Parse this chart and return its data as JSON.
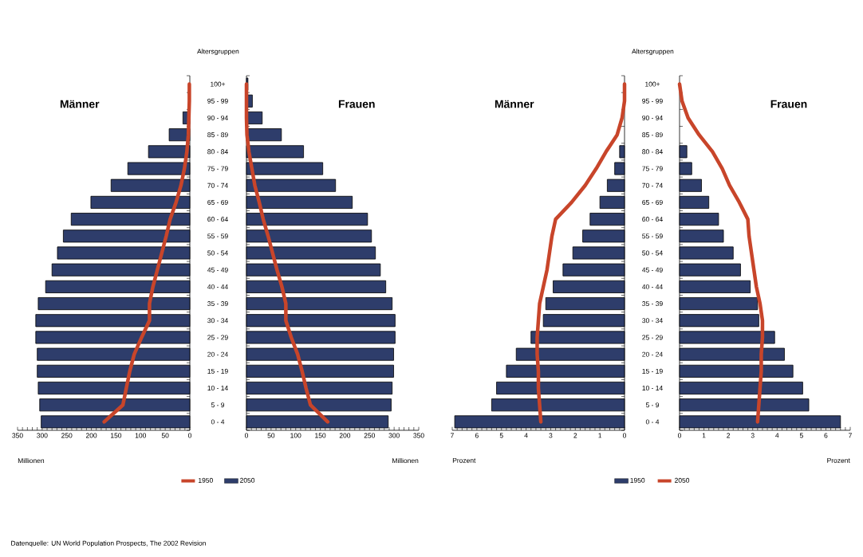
{
  "chart_data": [
    {
      "type": "bar",
      "orientation": "horizontal",
      "title": "Männer",
      "ylabel": "Altersgruppen",
      "xlabel": "Millionen",
      "legend": "bottom",
      "categories": [
        "100+",
        "95 - 99",
        "90 - 94",
        "85 - 89",
        "80 - 84",
        "75 - 79",
        "70 - 74",
        "65 - 69",
        "60 - 64",
        "55 - 59",
        "50 - 54",
        "45 - 49",
        "40 - 44",
        "35 - 39",
        "30 - 34",
        "25 - 29",
        "20 - 24",
        "15 - 19",
        "10 - 14",
        "5 - 9",
        "0 - 4"
      ],
      "xlim": [
        350,
        0
      ],
      "xticks": [
        350,
        300,
        250,
        200,
        150,
        100,
        50,
        0
      ],
      "series": [
        {
          "name": "1950",
          "type": "line",
          "color": "#c8452a",
          "values": [
            1,
            1,
            2,
            3,
            6,
            11,
            18,
            28,
            40,
            48,
            57,
            66,
            75,
            82,
            82,
            98,
            113,
            122,
            129,
            136,
            174
          ]
        },
        {
          "name": "2050",
          "type": "bar",
          "color": "#2e3d6b",
          "values": [
            null,
            null,
            14,
            42,
            84,
            126,
            160,
            201,
            241,
            257,
            269,
            280,
            293,
            308,
            313,
            313,
            310,
            310,
            308,
            305,
            302
          ]
        }
      ],
      "annotations": [
        "Datenquelle: UN World Population Prospects, The 2002 Revision"
      ]
    },
    {
      "type": "bar",
      "orientation": "horizontal",
      "title": "Frauen",
      "xlabel": "Millionen",
      "tick_labels": "x",
      "categories": [
        null,
        null,
        null,
        null,
        null,
        null,
        null,
        null,
        null,
        null,
        null,
        null,
        null,
        null,
        null,
        null,
        null,
        null,
        null,
        null,
        null
      ],
      "xlim": [
        0,
        350
      ],
      "xticks": [
        0,
        50,
        100,
        150,
        200,
        250,
        300,
        350
      ],
      "series": [
        {
          "type": "line",
          "color": "#c8452a",
          "values": [
            0,
            0,
            0,
            1,
            5,
            11,
            17,
            26,
            34,
            44,
            53,
            62,
            72,
            80,
            80,
            91,
            104,
            113,
            121,
            130,
            165
          ]
        },
        {
          "type": "bar",
          "color": "#2e3d6b",
          "values": [
            3,
            12,
            32,
            71,
            116,
            155,
            181,
            215,
            246,
            254,
            262,
            272,
            283,
            296,
            302,
            302,
            299,
            299,
            296,
            294,
            288
          ]
        }
      ]
    },
    {
      "type": "bar",
      "orientation": "horizontal",
      "title": "Männer",
      "ylabel": "Altersgruppen",
      "xlabel": "Prozent",
      "legend": "bottom",
      "categories": [
        "100+",
        "95 - 99",
        "90 - 94",
        "85 - 89",
        "80 - 84",
        "75 - 79",
        "70 - 74",
        "65 - 69",
        "60 - 64",
        "55 - 59",
        "50 - 54",
        "45 - 49",
        "40 - 44",
        "35 - 39",
        "30 - 34",
        "25 - 29",
        "20 - 24",
        "15 - 19",
        "10 - 14",
        "5 - 9",
        "0 - 4"
      ],
      "xlim": [
        7,
        0
      ],
      "xticks": [
        7,
        6,
        5,
        4,
        3,
        2,
        1,
        0
      ],
      "series": [
        {
          "name": "1950",
          "type": "bar",
          "color": "#2e3d6b",
          "values": [
            null,
            null,
            null,
            null,
            0.2,
            0.4,
            0.7,
            1.0,
            1.4,
            1.7,
            2.1,
            2.5,
            2.9,
            3.2,
            3.3,
            3.8,
            4.4,
            4.8,
            5.2,
            5.4,
            6.9
          ]
        },
        {
          "name": "2050",
          "type": "line",
          "color": "#c8452a",
          "values": [
            0,
            0,
            0.1,
            0.3,
            0.75,
            1.15,
            1.6,
            2.15,
            2.8,
            2.95,
            3.05,
            3.15,
            3.3,
            3.45,
            3.5,
            3.55,
            3.55,
            3.5,
            3.5,
            3.45,
            3.4
          ]
        }
      ]
    },
    {
      "type": "bar",
      "orientation": "horizontal",
      "title": "Frauen",
      "xlabel": "Prozent",
      "tick_labels": "x",
      "categories": [
        null,
        null,
        null,
        null,
        null,
        null,
        null,
        null,
        null,
        null,
        null,
        null,
        null,
        null,
        null,
        null,
        null,
        null,
        null,
        null,
        null
      ],
      "xlim": [
        0,
        7
      ],
      "xticks": [
        0,
        1,
        2,
        3,
        4,
        5,
        6,
        7
      ],
      "series": [
        {
          "type": "bar",
          "color": "#2e3d6b",
          "values": [
            null,
            null,
            null,
            null,
            0.3,
            0.5,
            0.9,
            1.2,
            1.6,
            1.8,
            2.2,
            2.5,
            2.9,
            3.2,
            3.25,
            3.9,
            4.3,
            4.65,
            5.05,
            5.3,
            6.6
          ]
        },
        {
          "type": "line",
          "color": "#c8452a",
          "values": [
            0,
            0.1,
            0.35,
            0.8,
            1.35,
            1.75,
            2.05,
            2.45,
            2.8,
            2.85,
            2.95,
            3.05,
            3.15,
            3.3,
            3.4,
            3.4,
            3.35,
            3.35,
            3.3,
            3.25,
            3.2
          ]
        }
      ]
    }
  ]
}
